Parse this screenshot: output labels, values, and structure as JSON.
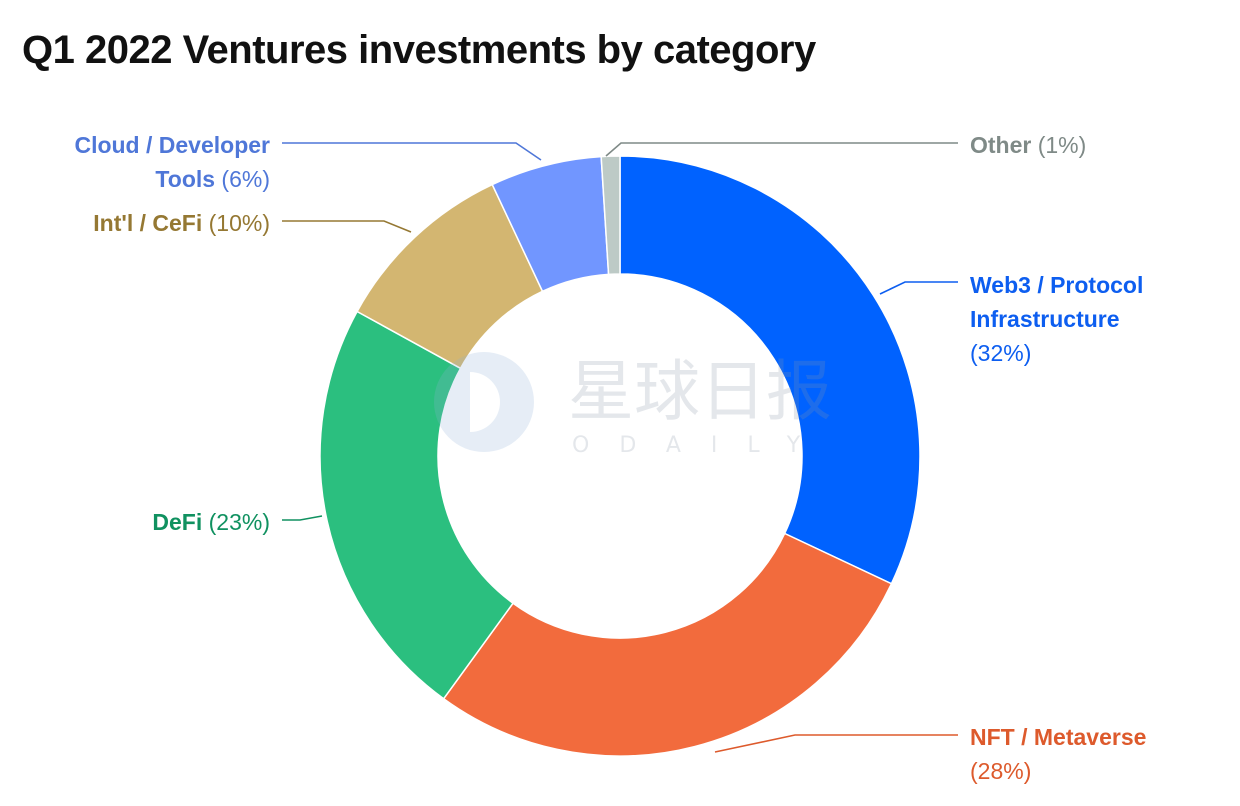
{
  "chart_data": {
    "type": "pie",
    "donut": true,
    "title": "Q1 2022 Ventures investments by category",
    "categories": [
      "Web3 / Protocol Infrastructure",
      "NFT / Metaverse",
      "DeFi",
      "Int'l / CeFi",
      "Cloud / Developer Tools",
      "Other"
    ],
    "values": [
      32,
      28,
      23,
      10,
      6,
      1
    ],
    "slices": [
      {
        "label": "Web3 / Protocol Infrastructure",
        "label_lines": [
          "Web3 / Protocol",
          "Infrastructure"
        ],
        "value": 32,
        "value_text": "(32%)",
        "color": "#0062ff",
        "text_color": "#0d5ef0"
      },
      {
        "label": "NFT / Metaverse",
        "label_lines": [
          "NFT / Metaverse"
        ],
        "value": 28,
        "value_text": "(28%)",
        "color": "#f26b3d",
        "text_color": "#dd5a2c"
      },
      {
        "label": "DeFi",
        "label_lines": [
          "DeFi"
        ],
        "value": 23,
        "value_text": "(23%)",
        "color": "#2bbf7f",
        "text_color": "#109160"
      },
      {
        "label": "Int'l / CeFi",
        "label_lines": [
          "Int'l / CeFi"
        ],
        "value": 10,
        "value_text": "(10%)",
        "color": "#d3b671",
        "text_color": "#957833"
      },
      {
        "label": "Cloud / Developer Tools",
        "label_lines": [
          "Cloud / Developer",
          "Tools"
        ],
        "value": 6,
        "value_text": "(6%)",
        "color": "#7196ff",
        "text_color": "#4f77d8"
      },
      {
        "label": "Other",
        "label_lines": [
          "Other"
        ],
        "value": 1,
        "value_text": "(1%)",
        "color": "#bdcac6",
        "text_color": "#7f8a87"
      }
    ],
    "legend": "none",
    "grid": false
  },
  "watermark": {
    "text_cn": "星球日报",
    "text_en": "ODAILY"
  }
}
